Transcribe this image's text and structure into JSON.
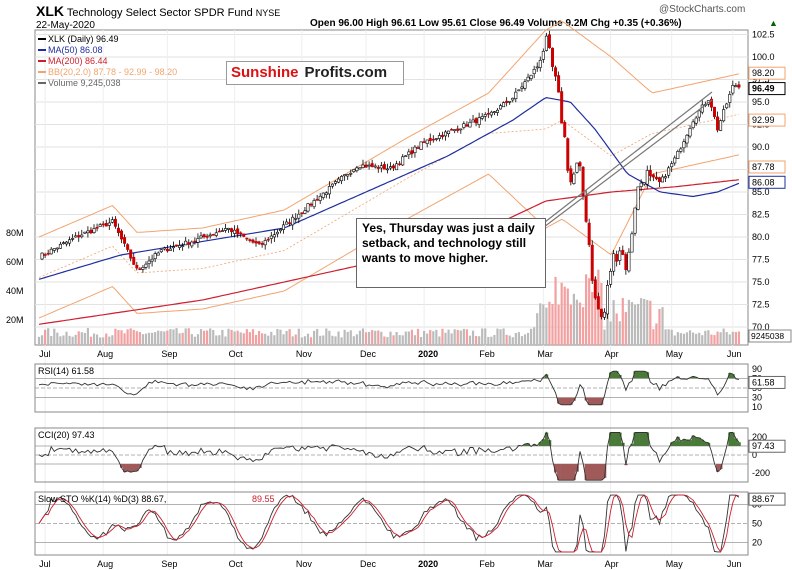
{
  "header": {
    "ticker": "XLK",
    "fund_name": "Technology Select Sector SPDR Fund",
    "exchange": "NYSE",
    "watermark": "@StockCharts.com",
    "date": "22-May-2020",
    "ohlc": "Open 96.00  High 96.61  Low 95.61  Close 96.49  Volume 9.2M  Chg +0.35 (+0.36%)",
    "change_arrow": "▲"
  },
  "legend": {
    "price": "XLK (Daily) 96.49",
    "ma50": "MA(50) 86.08",
    "ma200": "MA(200) 86.44",
    "bb": "BB(20,2.0) 87.78 - 92.99 - 98.20",
    "volume": "Volume 9,245,038"
  },
  "brand": {
    "part1": "Sunshine",
    "part2": "Profits.com"
  },
  "annotation": {
    "text": "Yes, Thursday was just a daily setback, and technology still wants to move higher."
  },
  "colors": {
    "up": "#ffffff",
    "down": "#cc0000",
    "candle_outline": "#000000",
    "ma50": "#1f2e9e",
    "ma200": "#cc1f2e",
    "bb": "#f2a46e",
    "volume": "#f2a0a0",
    "volume_gray": "#bbbbbb",
    "indicator_fill_green": "#4a7a3a",
    "indicator_fill_red": "#a05a5a",
    "stoch_k": "#000000",
    "stoch_d": "#cc1f2e"
  },
  "x_axis_labels": [
    "Jul",
    "Aug",
    "Sep",
    "Oct",
    "Nov",
    "Dec",
    "2020",
    "Feb",
    "Mar",
    "Apr",
    "May",
    "Jun"
  ],
  "chart_data": [
    {
      "type": "candlestick",
      "title": "XLK Technology Select Sector SPDR Fund NYSE",
      "ylim": [
        68,
        103
      ],
      "y_ticks": [
        "102.5",
        "100.0",
        "97.5",
        "95.0",
        "92.5",
        "90.0",
        "87.5",
        "85.0",
        "82.5",
        "80.0",
        "77.5",
        "75.0",
        "72.5",
        "70.0"
      ],
      "price_tags": [
        "98.20",
        "96.49",
        "92.99",
        "87.78",
        "86.08"
      ],
      "volume_tag": "9245038",
      "volume_ticks": [
        "80M",
        "60M",
        "40M",
        "20M"
      ],
      "close_path": [
        [
          0,
          77.8
        ],
        [
          5,
          80.2
        ],
        [
          9,
          81.7
        ],
        [
          12,
          76.3
        ],
        [
          15,
          78.5
        ],
        [
          19,
          79.6
        ],
        [
          23,
          81.0
        ],
        [
          27,
          79.0
        ],
        [
          31,
          82.0
        ],
        [
          35,
          85.0
        ],
        [
          39,
          88.0
        ],
        [
          43,
          87.6
        ],
        [
          47,
          90.5
        ],
        [
          51,
          92.0
        ],
        [
          55,
          93.5
        ],
        [
          58,
          95.5
        ],
        [
          61,
          99.0
        ],
        [
          62,
          101.5
        ],
        [
          63,
          98.0
        ],
        [
          64,
          93.0
        ],
        [
          65,
          86.0
        ],
        [
          66,
          88.0
        ],
        [
          67,
          82.0
        ],
        [
          68,
          73.0
        ],
        [
          69,
          70.5
        ],
        [
          70,
          77.0
        ],
        [
          71,
          79.0
        ],
        [
          72,
          76.5
        ],
        [
          73,
          84.5
        ],
        [
          74,
          87.0
        ],
        [
          76,
          86.0
        ],
        [
          78,
          89.0
        ],
        [
          80,
          93.0
        ],
        [
          82,
          95.5
        ],
        [
          83,
          92.0
        ],
        [
          84,
          94.5
        ],
        [
          85,
          97.0
        ],
        [
          86,
          96.5
        ]
      ],
      "series": [
        {
          "name": "MA(50)",
          "values": [
            [
              0,
              75.3
            ],
            [
              10,
              78.0
            ],
            [
              20,
              79.5
            ],
            [
              30,
              81.0
            ],
            [
              40,
              85.0
            ],
            [
              50,
              89.0
            ],
            [
              58,
              93.0
            ],
            [
              62,
              95.5
            ],
            [
              65,
              95.0
            ],
            [
              68,
              92.0
            ],
            [
              72,
              87.0
            ],
            [
              76,
              85.0
            ],
            [
              80,
              84.5
            ],
            [
              83,
              85.0
            ],
            [
              86,
              86.1
            ]
          ]
        },
        {
          "name": "MA(200)",
          "values": [
            [
              0,
              70.3
            ],
            [
              20,
              73.0
            ],
            [
              40,
              77.0
            ],
            [
              55,
              81.0
            ],
            [
              62,
              84.0
            ],
            [
              70,
              85.0
            ],
            [
              78,
              85.6
            ],
            [
              86,
              86.4
            ]
          ]
        },
        {
          "name": "BB(20,2.0)",
          "values": [
            [
              0,
              80.0
            ],
            [
              9,
              83.5
            ],
            [
              12,
              80.5
            ],
            [
              20,
              81.0
            ],
            [
              30,
              83.0
            ],
            [
              45,
              91.0
            ],
            [
              55,
              96.0
            ],
            [
              62,
              103.0
            ],
            [
              64,
              104.0
            ],
            [
              70,
              100.0
            ],
            [
              75,
              96.0
            ],
            [
              80,
              97.0
            ],
            [
              86,
              98.2
            ]
          ]
        }
      ]
    },
    {
      "type": "line",
      "title": "RSI(14) 61.58",
      "ylim": [
        0,
        100
      ],
      "y_ticks": [
        "90",
        "70",
        "50",
        "30",
        "10"
      ],
      "last": "61.58"
    },
    {
      "type": "line",
      "title": "CCI(20) 97.43",
      "ylim": [
        -300,
        300
      ],
      "y_ticks": [
        "200",
        "0",
        "-200"
      ],
      "last": "97.43"
    },
    {
      "type": "line",
      "title": "Slow STO %K(14) %D(3) 88.67, 89.55",
      "title_k": "Slow STO %K(14) %D(3) 88.67,",
      "title_d": "89.55",
      "ylim": [
        0,
        100
      ],
      "y_ticks": [
        "80",
        "50",
        "20"
      ],
      "last": "88.67"
    }
  ]
}
